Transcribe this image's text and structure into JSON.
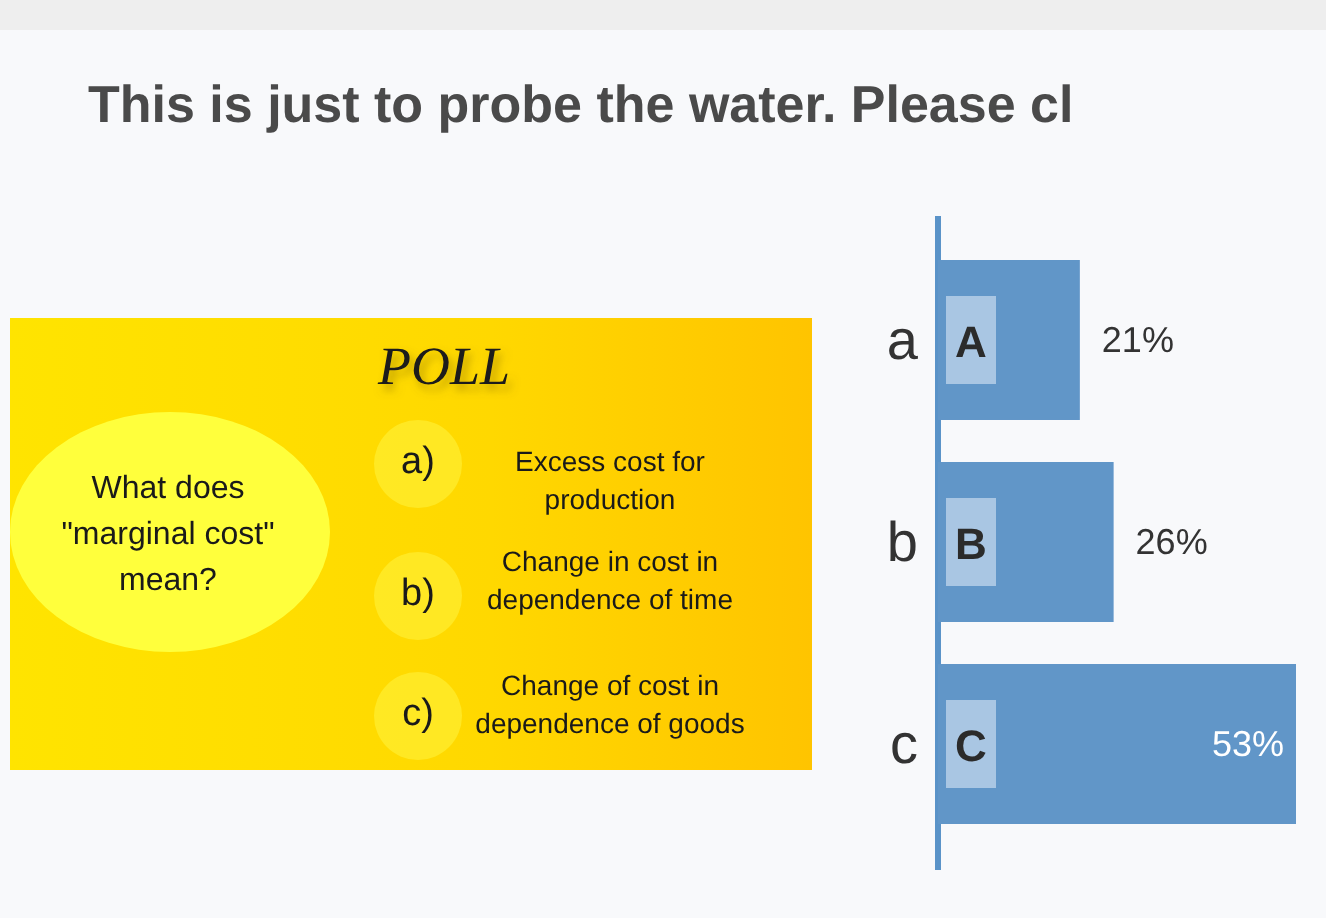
{
  "chart_data": [
    {
      "type": "other",
      "title": "POLL",
      "categories": [
        "a)",
        "b)",
        "c)"
      ],
      "annotations": [
        "What does\n\"marginal cost\"\nmean?",
        "Excess cost for\nproduction",
        "Change in cost in\ndependence of time",
        "Change of cost in\ndependence of goods"
      ]
    },
    {
      "type": "bar",
      "orientation": "horizontal",
      "title": "This is just to probe the water. Please cl",
      "categories": [
        "a",
        "b",
        "c"
      ],
      "values": [
        21,
        26,
        53
      ],
      "color": "#6196c8",
      "value_labels": [
        "21%",
        "26%",
        "53%"
      ],
      "annotations": [
        {
          "text": "A",
          "y": "a"
        },
        {
          "text": "B",
          "y": "b"
        },
        {
          "text": "C",
          "y": "c"
        }
      ]
    }
  ]
}
